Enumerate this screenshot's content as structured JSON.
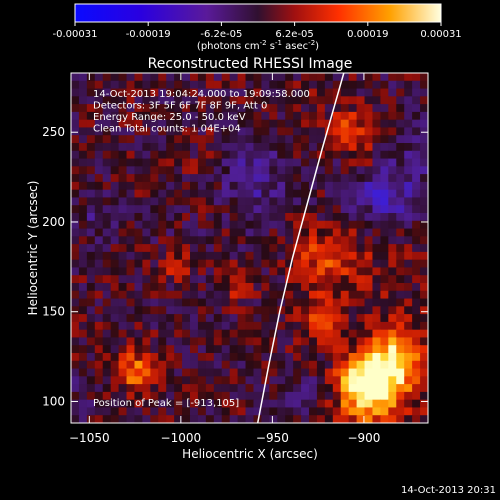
{
  "chart_data": {
    "type": "heatmap",
    "colorbar": {
      "ticks": [
        "-0.00031",
        "-0.00019",
        "-6.2e-05",
        "6.2e-05",
        "0.00019",
        "0.00031"
      ],
      "unit_main": "(photons cm",
      "unit_cm_exp": "-2",
      "unit_s": " s",
      "unit_s_exp": "-1",
      "unit_asec": " asec",
      "unit_asec_exp": "-2",
      "unit_close": ")",
      "range": [
        -0.00031,
        0.00031
      ]
    },
    "title": "Reconstructed RHESSI Image",
    "annotations": [
      "14-Oct-2013 19:04:24.000 to 19:09:58.000",
      "Detectors: 3F 5F 6F 7F 8F 9F, Att 0",
      "Energy Range: 25.0 - 50.0 keV",
      "Clean     Total counts: 1.04E+04"
    ],
    "peak_label": "Position of Peak = [-913,105]",
    "xlabel": "Heliocentric X (arcsec)",
    "ylabel": "Heliocentric Y (arcsec)",
    "xlim": [
      -1060,
      -865
    ],
    "ylim": [
      88,
      283
    ],
    "xticks": [
      {
        "value": -1050,
        "label": "−1050"
      },
      {
        "value": -1000,
        "label": "−1000"
      },
      {
        "value": -950,
        "label": "−950"
      },
      {
        "value": -900,
        "label": "−900"
      }
    ],
    "yticks": [
      {
        "value": 100,
        "label": "100"
      },
      {
        "value": 150,
        "label": "150"
      },
      {
        "value": 200,
        "label": "200"
      },
      {
        "value": 250,
        "label": "250"
      }
    ],
    "limb_points": [
      [
        -958,
        88
      ],
      [
        -952,
        120
      ],
      [
        -946,
        150
      ],
      [
        -939,
        180
      ],
      [
        -931,
        210
      ],
      [
        -923,
        240
      ],
      [
        -916,
        265
      ],
      [
        -911,
        283
      ]
    ],
    "peak": [
      -913,
      105
    ],
    "colors": {
      "background": "#000000",
      "limb": "#ffffff",
      "text": "#ffffff"
    }
  },
  "footer": {
    "timestamp": "14-Oct-2013 20:31"
  }
}
